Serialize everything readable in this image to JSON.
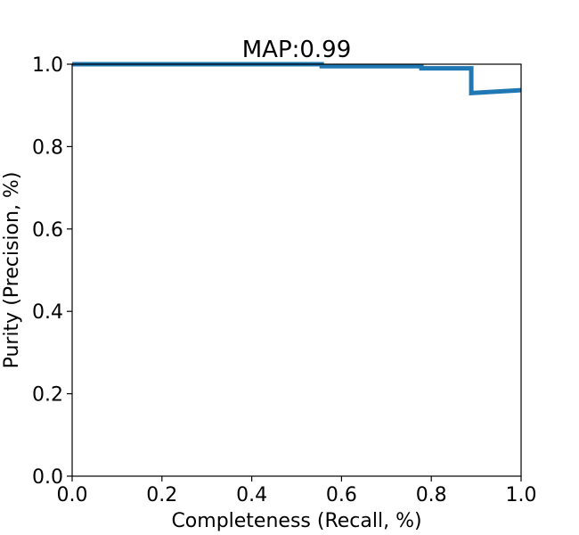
{
  "chart_data": {
    "type": "line",
    "title": "MAP:0.99",
    "xlabel": "Completeness (Recall, %)",
    "ylabel": "Purity (Precision, %)",
    "xlim": [
      0.0,
      1.0
    ],
    "ylim": [
      0.0,
      1.0
    ],
    "xticks": [
      "0.0",
      "0.2",
      "0.4",
      "0.6",
      "0.8",
      "1.0"
    ],
    "yticks": [
      "0.0",
      "0.2",
      "0.4",
      "0.6",
      "0.8",
      "1.0"
    ],
    "grid": false,
    "line_color": "#1f77b4",
    "series": [
      {
        "x": [
          0.0,
          0.556,
          0.556,
          0.778,
          0.778,
          0.889,
          0.889,
          1.0
        ],
        "y": [
          1.0,
          1.0,
          0.995,
          0.995,
          0.99,
          0.99,
          0.93,
          0.937
        ]
      }
    ]
  }
}
